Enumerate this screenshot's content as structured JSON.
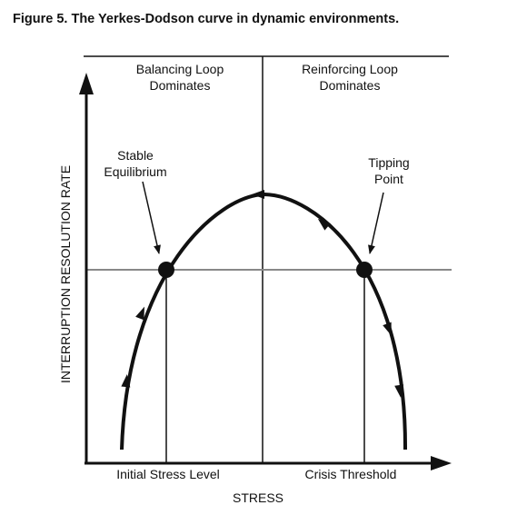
{
  "figure_title": "Figure 5. The Yerkes-Dodson curve in dynamic environments.",
  "regions": {
    "left_line1": "Balancing Loop",
    "left_line2": "Dominates",
    "right_line1": "Reinforcing Loop",
    "right_line2": "Dominates"
  },
  "y_axis_label": "INTERRUPTION RESOLUTION RATE",
  "x_axis_label": "STRESS",
  "x_ticks": {
    "initial": "Initial Stress Level",
    "crisis": "Crisis Threshold"
  },
  "annotations": {
    "stable_line1": "Stable",
    "stable_line2": "Equilibrium",
    "tipping_line1": "Tipping",
    "tipping_line2": "Point"
  }
}
